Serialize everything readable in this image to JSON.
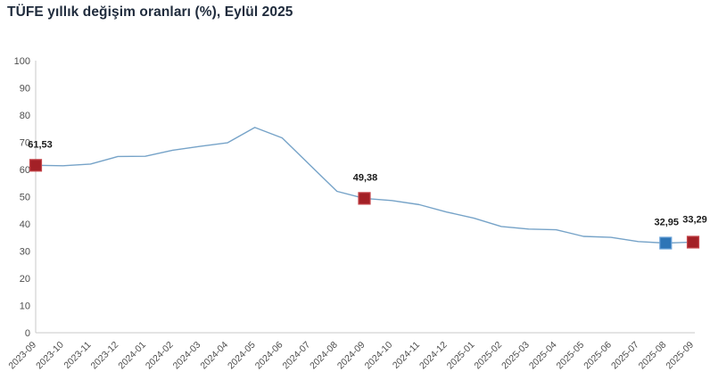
{
  "chart_data": {
    "type": "line",
    "title": "TÜFE yıllık değişim oranları (%), Eylül 2025",
    "categories": [
      "2023-09",
      "2023-10",
      "2023-11",
      "2023-12",
      "2024-01",
      "2024-02",
      "2024-03",
      "2024-04",
      "2024-05",
      "2024-06",
      "2024-07",
      "2024-08",
      "2024-09",
      "2024-10",
      "2024-11",
      "2024-12",
      "2025-01",
      "2025-02",
      "2025-03",
      "2025-04",
      "2025-05",
      "2025-06",
      "2025-07",
      "2025-08",
      "2025-09"
    ],
    "values": [
      61.53,
      61.36,
      61.98,
      64.77,
      64.86,
      67.07,
      68.5,
      69.8,
      75.45,
      71.6,
      61.78,
      51.97,
      49.38,
      48.58,
      47.09,
      44.38,
      42.12,
      39.05,
      38.1,
      37.86,
      35.41,
      35.05,
      33.52,
      32.95,
      33.29
    ],
    "xlabel": "",
    "ylabel": "",
    "ylim": [
      0,
      100
    ],
    "ytick_step": 10,
    "grid": false,
    "legend": "none",
    "decimal_separator": ",",
    "colors": {
      "line": "#76A3C8",
      "axis": "#C9C9C9",
      "tick_label": "#4D4D4D",
      "data_label": "#1A1A1A",
      "title": "#1F2B3C",
      "highlight_red_fill": "#A32026",
      "highlight_red_stroke": "#C5474C",
      "highlight_blue_fill": "#2E75B6",
      "highlight_blue_stroke": "#6AA3D8"
    },
    "highlights": [
      {
        "category": "2023-09",
        "value": 61.53,
        "label": "61,53",
        "color": "red",
        "dx": 5,
        "dy": 0
      },
      {
        "category": "2024-09",
        "value": 49.38,
        "label": "49,38",
        "color": "red",
        "dx": 1,
        "dy": 0
      },
      {
        "category": "2025-08",
        "value": 32.95,
        "label": "32,95",
        "color": "blue",
        "dx": 1,
        "dy": 0
      },
      {
        "category": "2025-09",
        "value": 33.29,
        "label": "33,29",
        "color": "red",
        "dx": 2,
        "dy": -2
      }
    ]
  }
}
